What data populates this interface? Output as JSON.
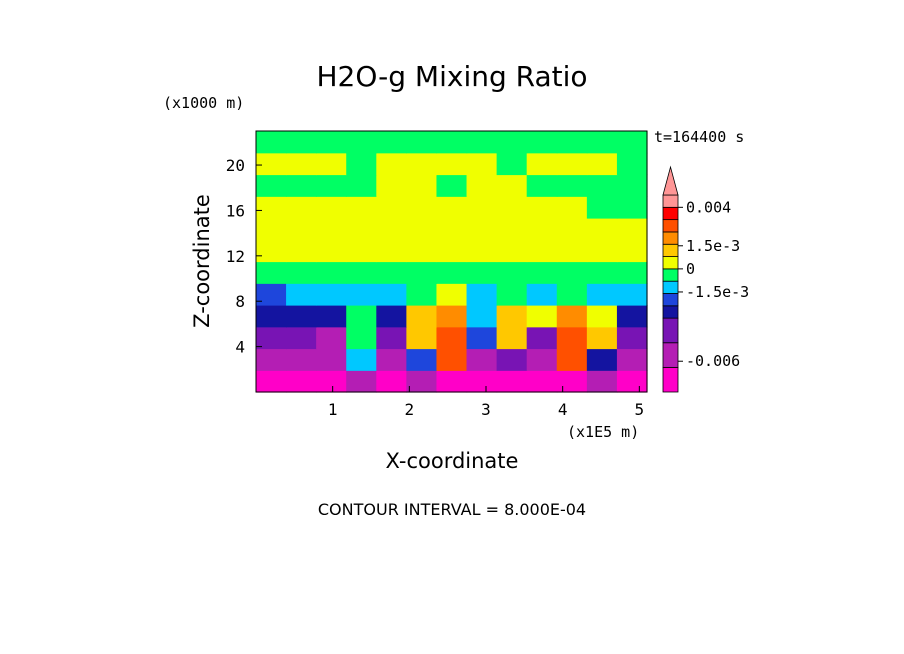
{
  "chart_data": {
    "type": "heatmap",
    "title": "H2O-g Mixing Ratio",
    "xlabel": "X-coordinate",
    "ylabel": "Z-coordinate",
    "x_units": "(x1E5 m)",
    "y_units": "(x1000 m)",
    "time_label": "t=164400 s",
    "footer": "CONTOUR INTERVAL = 8.000E-04",
    "x_ticks": [
      "1",
      "2",
      "3",
      "4",
      "5"
    ],
    "x_tick_values": [
      1,
      2,
      3,
      4,
      5
    ],
    "y_ticks": [
      "4",
      "8",
      "12",
      "16",
      "20"
    ],
    "y_tick_values": [
      4,
      8,
      12,
      16,
      20
    ],
    "xlim": [
      0,
      5.1
    ],
    "ylim": [
      0,
      23
    ],
    "colorbar": {
      "labels": [
        "0.004",
        "1.5e-3",
        "0",
        "-1.5e-3",
        "-0.006"
      ],
      "levels": [
        {
          "min": -0.008,
          "max": -0.0064,
          "color": "#ff00c8"
        },
        {
          "min": -0.0064,
          "max": -0.0048,
          "color": "#b41eb4"
        },
        {
          "min": -0.0048,
          "max": -0.0032,
          "color": "#7814b4"
        },
        {
          "min": -0.0032,
          "max": -0.0024,
          "color": "#1414a0"
        },
        {
          "min": -0.0024,
          "max": -0.0016,
          "color": "#1e46dc"
        },
        {
          "min": -0.0016,
          "max": -0.0008,
          "color": "#00c8ff"
        },
        {
          "min": -0.0008,
          "max": 0.0,
          "color": "#00ff64"
        },
        {
          "min": 0.0,
          "max": 0.0008,
          "color": "#f0ff00"
        },
        {
          "min": 0.0008,
          "max": 0.0016,
          "color": "#ffc800"
        },
        {
          "min": 0.0016,
          "max": 0.0024,
          "color": "#ff8c00"
        },
        {
          "min": 0.0024,
          "max": 0.0032,
          "color": "#ff5000"
        },
        {
          "min": 0.0032,
          "max": 0.004,
          "color": "#ff0000"
        },
        {
          "min": 0.004,
          "max": 0.0048,
          "color": "#ff9696"
        }
      ]
    },
    "z_values": [
      [
        -0.007,
        -0.0068,
        -0.0072,
        -0.006,
        -0.007,
        -0.005,
        -0.0068,
        -0.007,
        -0.0065,
        -0.0068,
        -0.007,
        -0.006,
        -0.007
      ],
      [
        -0.0055,
        -0.005,
        -0.0058,
        -0.001,
        -0.0052,
        -0.002,
        0.003,
        -0.005,
        -0.004,
        -0.0055,
        0.0025,
        -0.003,
        -0.0055
      ],
      [
        -0.0045,
        -0.004,
        -0.005,
        -0.0008,
        -0.0045,
        0.0015,
        0.003,
        -0.002,
        0.001,
        -0.004,
        0.003,
        0.0012,
        -0.004
      ],
      [
        -0.003,
        -0.0028,
        -0.003,
        -0.0005,
        -0.003,
        0.001,
        0.002,
        -0.0015,
        0.0012,
        0.0005,
        0.002,
        0.0005,
        -0.0025
      ],
      [
        -0.0018,
        -0.0012,
        -0.0015,
        -0.001,
        -0.0012,
        -0.0005,
        0.0005,
        -0.001,
        -0.0008,
        -0.001,
        -0.0005,
        -0.001,
        -0.0015
      ],
      [
        -0.0005,
        -0.0004,
        -0.0003,
        -0.0002,
        -0.0004,
        -0.0003,
        -0.0002,
        -0.0004,
        -0.0005,
        -0.0004,
        -0.0003,
        -0.0004,
        -0.0005
      ],
      [
        0.0004,
        0.0003,
        0.0004,
        0.0005,
        0.0004,
        0.0003,
        0.0004,
        0.0005,
        0.0004,
        0.0003,
        0.0004,
        0.0003,
        0.0004
      ],
      [
        0.0005,
        0.0004,
        0.0005,
        0.0005,
        0.0004,
        0.0005,
        0.0004,
        0.0005,
        0.0004,
        0.0005,
        0.0004,
        0.0003,
        0.0004
      ],
      [
        0.0004,
        0.0005,
        0.0004,
        0.0005,
        0.0005,
        0.0004,
        0.0005,
        0.0004,
        0.0005,
        0.0004,
        0.0003,
        -0.0003,
        -0.0004
      ],
      [
        -0.0004,
        -0.0003,
        -0.0004,
        -0.0003,
        0.0004,
        0.0003,
        -0.0003,
        0.0004,
        0.0003,
        -0.0004,
        -0.0005,
        -0.0004,
        -0.0005
      ],
      [
        0.0004,
        0.0003,
        0.0004,
        -0.0003,
        0.0004,
        0.0005,
        0.0004,
        0.0003,
        -0.0003,
        0.0004,
        0.0003,
        0.0004,
        -0.0003
      ],
      [
        -0.0003,
        -0.0004,
        -0.0003,
        -0.0004,
        -0.0005,
        -0.0003,
        -0.0004,
        -0.0003,
        -0.0004,
        -0.0003,
        -0.0004,
        -0.0005,
        -0.0004
      ]
    ]
  }
}
